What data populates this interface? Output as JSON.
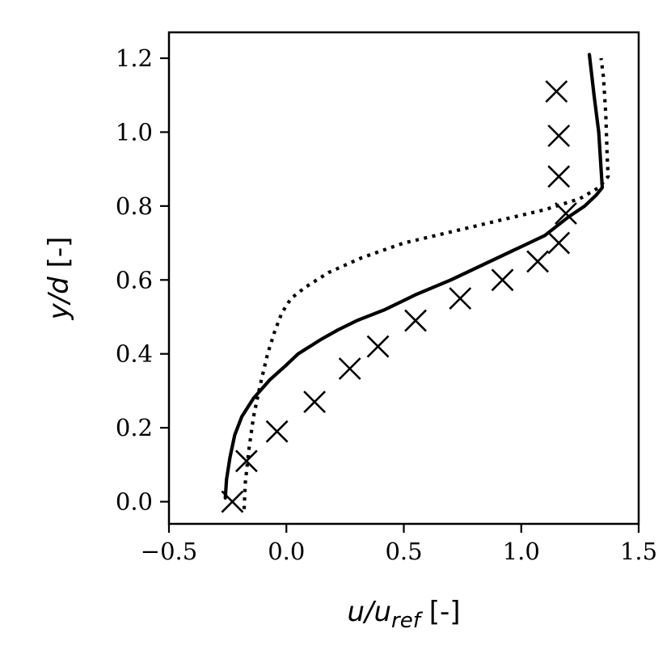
{
  "chart_data": {
    "type": "line",
    "title": "",
    "xlabel": {
      "main": "u/u",
      "sub": "ref",
      "unit": " [-]"
    },
    "ylabel": {
      "main": "y/d",
      "unit": " [-]"
    },
    "xlim": [
      -0.5,
      1.5
    ],
    "ylim": [
      -0.06,
      1.27
    ],
    "xticks": [
      -0.5,
      0.0,
      0.5,
      1.0,
      1.5
    ],
    "xtick_labels": [
      "−0.5",
      "0.0",
      "0.5",
      "1.0",
      "1.5"
    ],
    "yticks": [
      0.0,
      0.2,
      0.4,
      0.6,
      0.8,
      1.0,
      1.2
    ],
    "ytick_labels": [
      "0.0",
      "0.2",
      "0.4",
      "0.6",
      "0.8",
      "1.0",
      "1.2"
    ],
    "grid": false,
    "series": [
      {
        "style": "solid",
        "color": "#000000",
        "x": [
          -0.26,
          -0.255,
          -0.24,
          -0.22,
          -0.19,
          -0.14,
          -0.07,
          0.0,
          0.05,
          0.1,
          0.15,
          0.22,
          0.3,
          0.42,
          0.55,
          0.7,
          0.85,
          1.0,
          1.1,
          1.2,
          1.27,
          1.32,
          1.345,
          1.34,
          1.33,
          1.31,
          1.29
        ],
        "y": [
          0.01,
          0.06,
          0.12,
          0.18,
          0.23,
          0.28,
          0.33,
          0.37,
          0.4,
          0.42,
          0.44,
          0.465,
          0.49,
          0.52,
          0.56,
          0.6,
          0.645,
          0.69,
          0.72,
          0.77,
          0.8,
          0.83,
          0.85,
          0.9,
          1.0,
          1.1,
          1.21
        ]
      },
      {
        "style": "dotted",
        "color": "#000000",
        "x": [
          -0.18,
          -0.175,
          -0.16,
          -0.14,
          -0.11,
          -0.08,
          -0.05,
          -0.02,
          0.02,
          0.08,
          0.18,
          0.32,
          0.5,
          0.7,
          0.9,
          1.1,
          1.25,
          1.33,
          1.37,
          1.365,
          1.36,
          1.35,
          1.34
        ],
        "y": [
          -0.02,
          0.05,
          0.14,
          0.23,
          0.32,
          0.4,
          0.46,
          0.51,
          0.55,
          0.58,
          0.62,
          0.66,
          0.7,
          0.73,
          0.76,
          0.79,
          0.82,
          0.85,
          0.88,
          0.95,
          1.05,
          1.15,
          1.2
        ]
      },
      {
        "style": "x-markers",
        "color": "#000000",
        "x": [
          -0.23,
          -0.17,
          -0.04,
          0.12,
          0.27,
          0.39,
          0.55,
          0.74,
          0.92,
          1.07,
          1.16,
          1.19,
          1.16,
          1.16,
          1.15
        ],
        "y": [
          0.0,
          0.11,
          0.19,
          0.27,
          0.36,
          0.42,
          0.49,
          0.55,
          0.6,
          0.65,
          0.7,
          0.78,
          0.88,
          0.99,
          1.11
        ]
      }
    ]
  }
}
